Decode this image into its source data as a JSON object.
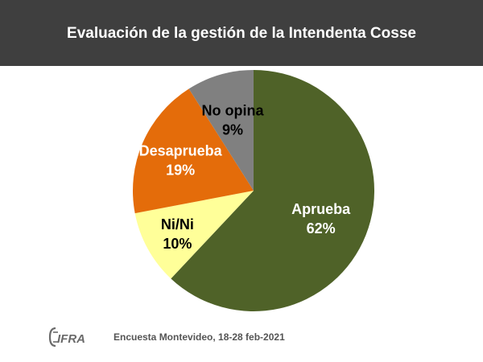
{
  "title": "Evaluación de la gestión de la Intendenta Cosse",
  "source": "Encuesta Montevideo,  18-28 feb-2021",
  "logo_text": "CIFRA",
  "chart_data": {
    "type": "pie",
    "title": "Evaluación de la gestión de la Intendenta Cosse",
    "start_angle_deg": 0,
    "direction": "clockwise",
    "slices": [
      {
        "name": "Aprueba",
        "value": 62,
        "value_label": "62%",
        "color": "#4f6228",
        "text_color": "#ffffff"
      },
      {
        "name": "Ni/Ni",
        "value": 10,
        "value_label": "10%",
        "color": "#ffff99",
        "text_color": "#000000"
      },
      {
        "name": "Desaprueba",
        "value": 19,
        "value_label": "19%",
        "color": "#e46c0a",
        "text_color": "#ffffff"
      },
      {
        "name": "No opina",
        "value": 9,
        "value_label": "9%",
        "color": "#808080",
        "text_color": "#000000"
      }
    ]
  },
  "colors": {
    "header_bg": "#3f3f3f",
    "title_text": "#ffffff",
    "source_text": "#555555"
  }
}
